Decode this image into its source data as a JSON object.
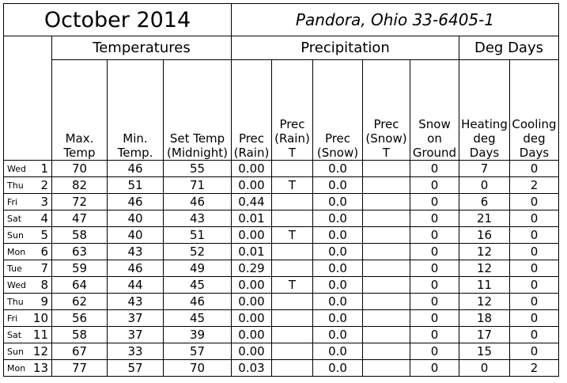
{
  "title": {
    "month": "October 2014",
    "station": "Pandora, Ohio 33-6405-1"
  },
  "groups": {
    "temperatures": "Temperatures",
    "precipitation": "Precipitation",
    "deg_days": "Deg Days"
  },
  "columns": {
    "max_temp": [
      "Max.",
      "Temp"
    ],
    "min_temp": [
      "Min.",
      "Temp."
    ],
    "set_temp": [
      "Set Temp",
      "(Midnight)"
    ],
    "prec_rain": [
      "Prec",
      "(Rain)"
    ],
    "prec_rain_t": [
      "Prec",
      "(Rain)",
      "T"
    ],
    "prec_snow": [
      "Prec",
      "(Snow)"
    ],
    "prec_snow_t": [
      "Prec",
      "(Snow)",
      "T"
    ],
    "snow_ground": [
      "Snow",
      "on",
      "Ground"
    ],
    "heating": [
      "Heating",
      "deg",
      "Days"
    ],
    "cooling": [
      "Cooling",
      "deg",
      "Days"
    ]
  },
  "rows": [
    {
      "dow": "Wed",
      "day": "1",
      "max": "70",
      "min": "46",
      "set": "55",
      "rain": "0.00",
      "rain_t": "",
      "snow": "0.0",
      "snow_t": "",
      "ground": "0",
      "heat": "7",
      "cool": "0"
    },
    {
      "dow": "Thu",
      "day": "2",
      "max": "82",
      "min": "51",
      "set": "71",
      "rain": "0.00",
      "rain_t": "T",
      "snow": "0.0",
      "snow_t": "",
      "ground": "0",
      "heat": "0",
      "cool": "2"
    },
    {
      "dow": "Fri",
      "day": "3",
      "max": "72",
      "min": "46",
      "set": "46",
      "rain": "0.44",
      "rain_t": "",
      "snow": "0.0",
      "snow_t": "",
      "ground": "0",
      "heat": "6",
      "cool": "0"
    },
    {
      "dow": "Sat",
      "day": "4",
      "max": "47",
      "min": "40",
      "set": "43",
      "rain": "0.01",
      "rain_t": "",
      "snow": "0.0",
      "snow_t": "",
      "ground": "0",
      "heat": "21",
      "cool": "0"
    },
    {
      "dow": "Sun",
      "day": "5",
      "max": "58",
      "min": "40",
      "set": "51",
      "rain": "0.00",
      "rain_t": "T",
      "snow": "0.0",
      "snow_t": "",
      "ground": "0",
      "heat": "16",
      "cool": "0"
    },
    {
      "dow": "Mon",
      "day": "6",
      "max": "63",
      "min": "43",
      "set": "52",
      "rain": "0.01",
      "rain_t": "",
      "snow": "0.0",
      "snow_t": "",
      "ground": "0",
      "heat": "12",
      "cool": "0"
    },
    {
      "dow": "Tue",
      "day": "7",
      "max": "59",
      "min": "46",
      "set": "49",
      "rain": "0.29",
      "rain_t": "",
      "snow": "0.0",
      "snow_t": "",
      "ground": "0",
      "heat": "12",
      "cool": "0"
    },
    {
      "dow": "Wed",
      "day": "8",
      "max": "64",
      "min": "44",
      "set": "45",
      "rain": "0.00",
      "rain_t": "T",
      "snow": "0.0",
      "snow_t": "",
      "ground": "0",
      "heat": "11",
      "cool": "0"
    },
    {
      "dow": "Thu",
      "day": "9",
      "max": "62",
      "min": "43",
      "set": "46",
      "rain": "0.00",
      "rain_t": "",
      "snow": "0.0",
      "snow_t": "",
      "ground": "0",
      "heat": "12",
      "cool": "0"
    },
    {
      "dow": "Fri",
      "day": "10",
      "max": "56",
      "min": "37",
      "set": "45",
      "rain": "0.00",
      "rain_t": "",
      "snow": "0.0",
      "snow_t": "",
      "ground": "0",
      "heat": "18",
      "cool": "0"
    },
    {
      "dow": "Sat",
      "day": "11",
      "max": "58",
      "min": "37",
      "set": "39",
      "rain": "0.00",
      "rain_t": "",
      "snow": "0.0",
      "snow_t": "",
      "ground": "0",
      "heat": "17",
      "cool": "0"
    },
    {
      "dow": "Sun",
      "day": "12",
      "max": "67",
      "min": "33",
      "set": "57",
      "rain": "0.00",
      "rain_t": "",
      "snow": "0.0",
      "snow_t": "",
      "ground": "0",
      "heat": "15",
      "cool": "0"
    },
    {
      "dow": "Mon",
      "day": "13",
      "max": "77",
      "min": "57",
      "set": "70",
      "rain": "0.03",
      "rain_t": "",
      "snow": "0.0",
      "snow_t": "",
      "ground": "0",
      "heat": "0",
      "cool": "2"
    }
  ]
}
